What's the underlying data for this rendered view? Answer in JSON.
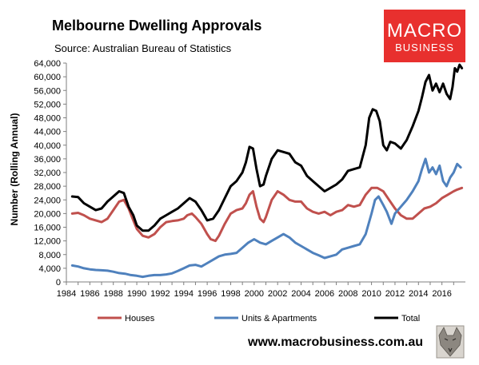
{
  "header": {
    "title": "Melbourne Dwelling Approvals",
    "subtitle": "Source: Australian Bureau of Statistics"
  },
  "logo": {
    "line1": "MACRO",
    "line2": "BUSINESS",
    "bg_color": "#e8302e"
  },
  "footer": {
    "url": "www.macrobusiness.com.au"
  },
  "chart_data": {
    "type": "line",
    "ylabel": "Number (Rolling Annual)",
    "xlabel": "",
    "ylim": [
      0,
      64000
    ],
    "yticks": [
      0,
      4000,
      8000,
      12000,
      16000,
      20000,
      24000,
      28000,
      32000,
      36000,
      40000,
      44000,
      48000,
      52000,
      56000,
      60000,
      64000
    ],
    "ytick_labels": [
      "0",
      "4,000",
      "8,000",
      "12,000",
      "16,000",
      "20,000",
      "24,000",
      "28,000",
      "32,000",
      "36,000",
      "40,000",
      "44,000",
      "48,000",
      "52,000",
      "56,000",
      "60,000",
      "64,000"
    ],
    "xlim": [
      1984,
      2018
    ],
    "xticks": [
      1984,
      1986,
      1988,
      1990,
      1992,
      1994,
      1996,
      1998,
      2000,
      2002,
      2004,
      2006,
      2008,
      2010,
      2012,
      2014,
      2016
    ],
    "xtick_labels": [
      "1984",
      "1986",
      "1988",
      "1990",
      "1992",
      "1994",
      "1996",
      "1998",
      "2000",
      "2002",
      "2004",
      "2006",
      "2008",
      "2010",
      "2012",
      "2014",
      "2016"
    ],
    "grid": false,
    "legend_position": "bottom",
    "series": [
      {
        "name": "Houses",
        "color": "#c0504d",
        "x": [
          1984.5,
          1985.0,
          1985.5,
          1986.0,
          1986.5,
          1987.0,
          1987.5,
          1988.0,
          1988.5,
          1988.9,
          1989.3,
          1989.7,
          1990.0,
          1990.5,
          1991.0,
          1991.5,
          1992.0,
          1992.5,
          1993.0,
          1993.5,
          1994.0,
          1994.3,
          1994.7,
          1995.0,
          1995.5,
          1996.0,
          1996.3,
          1996.7,
          1997.0,
          1997.5,
          1998.0,
          1998.5,
          1999.0,
          1999.3,
          1999.6,
          1999.9,
          2000.2,
          2000.5,
          2000.8,
          2001.0,
          2001.5,
          2002.0,
          2002.5,
          2003.0,
          2003.5,
          2004.0,
          2004.5,
          2005.0,
          2005.5,
          2006.0,
          2006.5,
          2007.0,
          2007.5,
          2008.0,
          2008.5,
          2009.0,
          2009.5,
          2010.0,
          2010.5,
          2011.0,
          2011.5,
          2012.0,
          2012.5,
          2013.0,
          2013.5,
          2014.0,
          2014.5,
          2015.0,
          2015.5,
          2016.0,
          2016.5,
          2017.0,
          2017.3,
          2017.7
        ],
        "values": [
          20000,
          20200,
          19500,
          18500,
          18000,
          17500,
          18500,
          21000,
          23500,
          24000,
          21500,
          18000,
          15500,
          13500,
          13000,
          14000,
          16000,
          17500,
          17800,
          18000,
          18500,
          19500,
          20000,
          19000,
          17000,
          14000,
          12500,
          12000,
          13500,
          17000,
          20000,
          21000,
          21500,
          23000,
          25500,
          26500,
          22000,
          18500,
          17500,
          19000,
          24000,
          26500,
          25500,
          24000,
          23500,
          23500,
          21500,
          20500,
          20000,
          20500,
          19500,
          20500,
          21000,
          22500,
          22000,
          22500,
          25500,
          27500,
          27500,
          26500,
          24000,
          21500,
          19500,
          18500,
          18500,
          20000,
          21500,
          22000,
          23000,
          24500,
          25500,
          26500,
          27000,
          27500
        ]
      },
      {
        "name": "Units & Apartments",
        "color": "#4f81bd",
        "x": [
          1984.5,
          1985.0,
          1985.5,
          1986.0,
          1986.5,
          1987.0,
          1987.5,
          1988.0,
          1988.5,
          1989.0,
          1989.5,
          1990.0,
          1990.5,
          1991.0,
          1991.5,
          1992.0,
          1992.5,
          1993.0,
          1993.5,
          1994.0,
          1994.5,
          1995.0,
          1995.5,
          1996.0,
          1996.5,
          1997.0,
          1997.5,
          1998.0,
          1998.5,
          1999.0,
          1999.5,
          2000.0,
          2000.5,
          2001.0,
          2001.5,
          2002.0,
          2002.5,
          2003.0,
          2003.5,
          2004.0,
          2004.5,
          2005.0,
          2005.5,
          2006.0,
          2006.5,
          2007.0,
          2007.5,
          2008.0,
          2008.5,
          2009.0,
          2009.5,
          2010.0,
          2010.3,
          2010.6,
          2011.0,
          2011.3,
          2011.7,
          2012.0,
          2012.5,
          2013.0,
          2013.5,
          2014.0,
          2014.3,
          2014.6,
          2014.9,
          2015.2,
          2015.5,
          2015.8,
          2016.1,
          2016.4,
          2016.7,
          2017.0,
          2017.3,
          2017.6
        ],
        "values": [
          4800,
          4500,
          4000,
          3700,
          3500,
          3400,
          3300,
          3000,
          2600,
          2400,
          2000,
          1800,
          1500,
          1800,
          2000,
          2000,
          2200,
          2500,
          3200,
          4000,
          4800,
          5000,
          4500,
          5500,
          6500,
          7500,
          8000,
          8200,
          8500,
          10000,
          11500,
          12500,
          11500,
          11000,
          12000,
          13000,
          14000,
          13000,
          11500,
          10500,
          9500,
          8500,
          7800,
          7000,
          7500,
          8000,
          9500,
          10000,
          10500,
          11000,
          14000,
          20000,
          24000,
          25000,
          22500,
          20500,
          17000,
          20000,
          22000,
          24000,
          26500,
          29500,
          33000,
          36000,
          32000,
          33500,
          31500,
          34000,
          29500,
          28000,
          30500,
          32000,
          34500,
          33500
        ]
      },
      {
        "name": "Total",
        "color": "#000000",
        "x": [
          1984.5,
          1985.0,
          1985.5,
          1986.0,
          1986.5,
          1987.0,
          1987.5,
          1988.0,
          1988.5,
          1988.9,
          1989.3,
          1989.7,
          1990.0,
          1990.5,
          1991.0,
          1991.5,
          1992.0,
          1992.5,
          1993.0,
          1993.5,
          1994.0,
          1994.5,
          1995.0,
          1995.5,
          1996.0,
          1996.5,
          1997.0,
          1997.5,
          1998.0,
          1998.5,
          1999.0,
          1999.3,
          1999.6,
          1999.9,
          2000.2,
          2000.5,
          2000.8,
          2001.0,
          2001.5,
          2002.0,
          2002.5,
          2003.0,
          2003.5,
          2004.0,
          2004.5,
          2005.0,
          2005.5,
          2006.0,
          2006.5,
          2007.0,
          2007.5,
          2008.0,
          2008.5,
          2009.0,
          2009.5,
          2009.8,
          2010.1,
          2010.4,
          2010.7,
          2011.0,
          2011.3,
          2011.6,
          2012.0,
          2012.5,
          2013.0,
          2013.5,
          2014.0,
          2014.3,
          2014.6,
          2014.9,
          2015.2,
          2015.5,
          2015.8,
          2016.1,
          2016.4,
          2016.7,
          2016.9,
          2017.1,
          2017.3,
          2017.5,
          2017.7
        ],
        "values": [
          25000,
          24800,
          23000,
          22000,
          21000,
          21500,
          23500,
          25000,
          26500,
          26000,
          22000,
          19500,
          16500,
          15000,
          15000,
          16500,
          18500,
          19500,
          20500,
          21500,
          23000,
          24500,
          23500,
          21000,
          18000,
          18500,
          21000,
          24500,
          28000,
          29500,
          32000,
          35000,
          39500,
          39000,
          33000,
          28000,
          28500,
          31000,
          36000,
          38500,
          38000,
          37500,
          35000,
          34000,
          31000,
          29500,
          28000,
          26500,
          27500,
          28500,
          30000,
          32500,
          33000,
          33500,
          40000,
          48000,
          50500,
          50000,
          47000,
          40000,
          38500,
          41000,
          40500,
          39000,
          41500,
          45500,
          50000,
          54000,
          58500,
          60500,
          56000,
          58000,
          55500,
          58000,
          55000,
          53500,
          57000,
          62500,
          61500,
          63500,
          62500
        ]
      }
    ]
  }
}
